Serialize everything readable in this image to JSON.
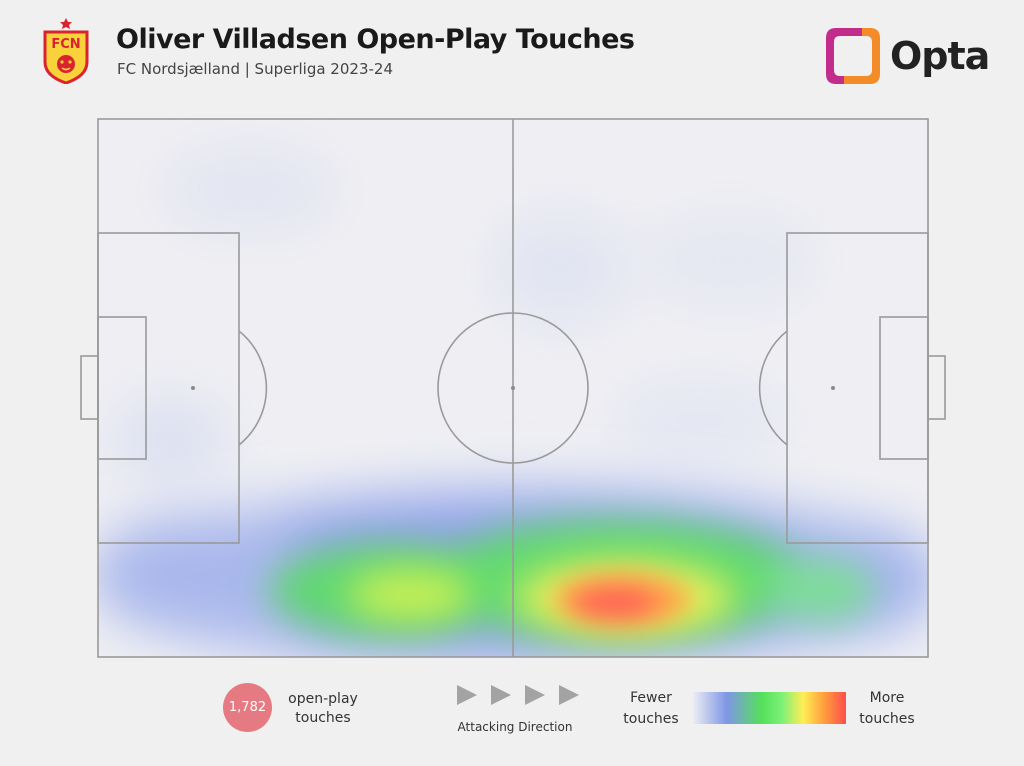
{
  "header": {
    "title": "Oliver Villadsen Open-Play Touches",
    "subtitle": "FC Nordsjælland | Superliga 2023-24",
    "crest_text": "FCN",
    "logo_text": "Opta"
  },
  "chart_data": {
    "type": "heatmap",
    "title": "Oliver Villadsen Open-Play Touches",
    "subtitle": "FC Nordsjælland | Superliga 2023-24",
    "pitch": {
      "length": 105,
      "width": 68,
      "orientation": "horizontal",
      "attacking_direction": "left-to-right"
    },
    "total_touches": 1782,
    "hotspots": [
      {
        "x": 67,
        "y": 7,
        "intensity": 1.0
      },
      {
        "x": 38,
        "y": 7,
        "intensity": 0.62
      },
      {
        "x": 82,
        "y": 9,
        "intensity": 0.45
      },
      {
        "x": 53,
        "y": 14,
        "intensity": 0.35
      },
      {
        "x": 24,
        "y": 10,
        "intensity": 0.3
      },
      {
        "x": 95,
        "y": 8,
        "intensity": 0.25
      }
    ],
    "colormap": [
      "#ecedf4",
      "#7f96e6",
      "#55e05a",
      "#ffee55",
      "#ff9c3c",
      "#ff4e4e"
    ],
    "legend": {
      "low_label": "Fewer touches",
      "high_label": "More touches"
    }
  },
  "footer": {
    "touch_count": "1,782",
    "touch_label": "open-play touches",
    "direction_label": "Attacking Direction",
    "legend_low": "Fewer touches",
    "legend_high": "More touches"
  },
  "colors": {
    "background": "#f0f0f0",
    "pitch_lines": "#9a9a9a",
    "badge": "#e57a82",
    "crest_red": "#d9232e",
    "crest_yellow": "#f8d13b",
    "opta_orange": "#f28c28",
    "opta_purple": "#c22d8d"
  }
}
